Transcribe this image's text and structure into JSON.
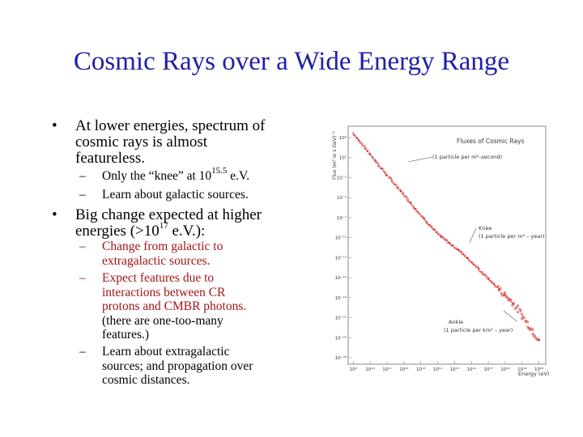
{
  "slide": {
    "title": "Cosmic Rays over a Wide Energy Range",
    "bullets": [
      {
        "lines": [
          "At lower energies, spectrum of",
          "cosmic rays is almost",
          "featureless."
        ],
        "sub": [
          {
            "lines": [
              [
                "Only the “knee” at 10",
                "15.5",
                " e.V."
              ]
            ]
          },
          {
            "lines": [
              [
                "Learn about galactic sources."
              ]
            ]
          }
        ]
      },
      {
        "lines": [
          [
            "Big change expected at higher"
          ],
          [
            "energies (>10",
            "17",
            " e.V.):"
          ]
        ],
        "sub": [
          {
            "red": true,
            "lines": [
              "Change from galactic to",
              "extragalactic sources."
            ]
          },
          {
            "red": true,
            "lines": [
              "Expect features due to",
              "interactions between CR",
              "protons and CMBR photons."
            ],
            "tail": [
              "(there are one-too-many",
              "features.)"
            ]
          },
          {
            "lines": [
              "Learn about extragalactic",
              "sources; and propagation over",
              "cosmic distances."
            ]
          }
        ]
      }
    ]
  },
  "chart_data": {
    "type": "scatter",
    "title": "Fluxes of Cosmic Rays",
    "xlabel": "Energy (eV)",
    "ylabel": "Flux (m² sr s GeV)⁻¹",
    "x_ticks": [
      "10⁹",
      "10¹⁰",
      "10¹¹",
      "10¹²",
      "10¹³",
      "10¹⁴",
      "10¹⁵",
      "10¹⁶",
      "10¹⁷",
      "10¹⁸",
      "10¹⁹",
      "10²⁰"
    ],
    "y_ticks": [
      "10⁴",
      "10¹",
      "10⁻²",
      "10⁻⁴",
      "10⁻⁷",
      "10⁻¹⁰",
      "10⁻¹³",
      "10⁻¹⁶",
      "10⁻¹⁹",
      "10⁻²²",
      "10⁻²⁵",
      "10⁻²⁸"
    ],
    "annotations": [
      "(1 particle per m²–second)",
      "Knee",
      "(1 particle per m² – year)",
      "Ankle",
      "(1 particle per km² – year)"
    ],
    "series": [
      {
        "x": [
          9,
          10,
          11,
          12,
          13,
          14,
          15.5,
          17,
          18.5,
          19.5,
          20
        ],
        "y": [
          4,
          1,
          -2,
          -4.8,
          -7.7,
          -10.4,
          -13.2,
          -16.8,
          -20.3,
          -23.8,
          -25.5
        ]
      }
    ],
    "color": "#d11a1a"
  }
}
